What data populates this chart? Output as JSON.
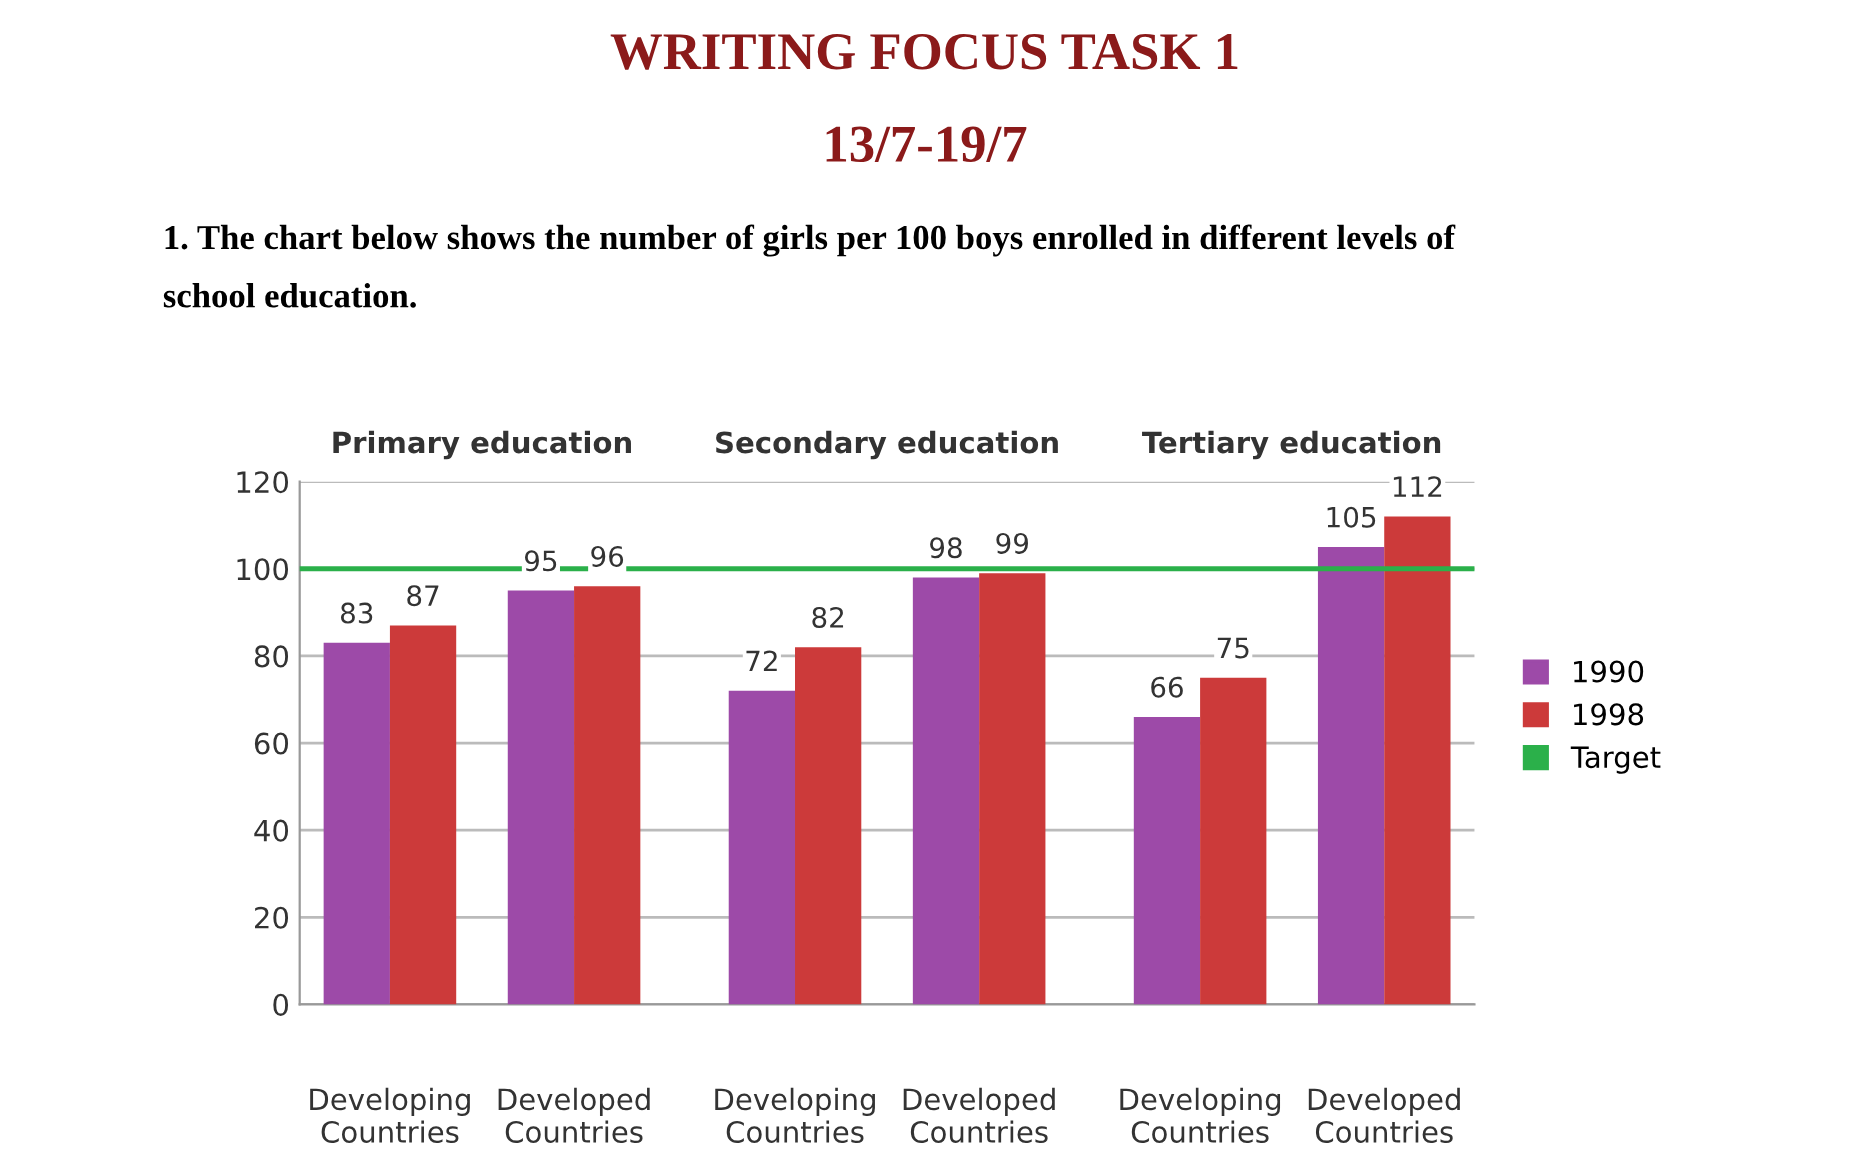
{
  "chart_data": {
    "type": "bar",
    "title": "WRITING FOCUS TASK 1",
    "subtitle": "13/7-19/7",
    "annotations": [
      "1. The chart below shows the number of girls per 100 boys enrolled in different levels of\nschool education.",
      "Primary education",
      "Secondary education",
      "Tertiary education"
    ],
    "categories": [
      "Developing\nCountries",
      "Developed\nCountries",
      "Developing\nCountries",
      "Developed\nCountries",
      "Developing\nCountries",
      "Developed\nCountries"
    ],
    "series": [
      {
        "name": "1990",
        "color": "#9d4aa8",
        "values": [
          83,
          95,
          72,
          98,
          66,
          105
        ]
      },
      {
        "name": "1998",
        "color": "#cc3a3a",
        "values": [
          87,
          96,
          82,
          99,
          75,
          112
        ]
      }
    ],
    "ref_lines": [
      {
        "axis": "y",
        "value": 100,
        "label": "Target",
        "color": "#2bb04a"
      }
    ],
    "ylim": [
      0,
      120
    ],
    "yticks": [
      0,
      20,
      40,
      60,
      80,
      100,
      120
    ],
    "grid": "y",
    "legend": "right",
    "data_labels": true
  }
}
